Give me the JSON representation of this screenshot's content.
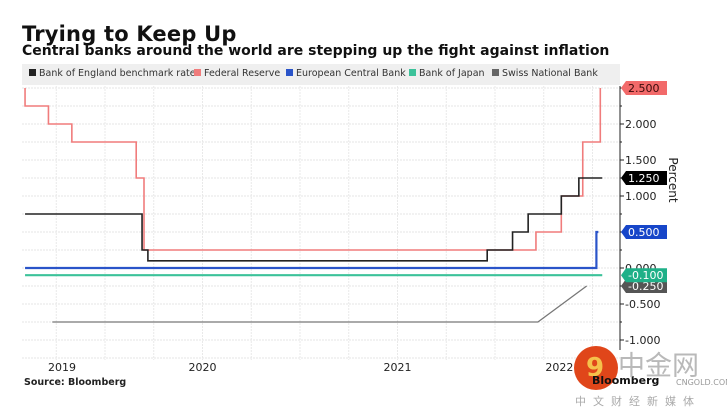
{
  "chart_data": {
    "type": "line",
    "title": "Trying to Keep Up",
    "subtitle": "Central banks around the world are stepping up the fight against inflation",
    "xlabel": "",
    "ylabel": "Percent",
    "ylim": [
      -1.0,
      2.5
    ],
    "xlim": [
      2019.59,
      2022.55
    ],
    "x_ticks": [
      {
        "label": "2019",
        "value": 2019.5
      },
      {
        "label": "2020",
        "value": 2020.5
      },
      {
        "label": "2021",
        "value": 2021.5
      },
      {
        "label": "2022",
        "value": 2022.33
      }
    ],
    "y_ticks": [
      {
        "label": "2.000",
        "value": 2.0
      },
      {
        "label": "1.500",
        "value": 1.5
      },
      {
        "label": "1.000",
        "value": 1.0
      },
      {
        "label": "0.000",
        "value": 0.0
      },
      {
        "label": "-0.500",
        "value": -0.5
      },
      {
        "label": "-1.000",
        "value": -1.0
      }
    ],
    "grid": true,
    "legend_position": "top",
    "series": [
      {
        "name": "Bank of England benchmark rate",
        "color": "#222222",
        "step": true,
        "points": [
          [
            2019.59,
            0.75
          ],
          [
            2020.19,
            0.25
          ],
          [
            2020.22,
            0.1
          ],
          [
            2021.96,
            0.25
          ],
          [
            2022.09,
            0.5
          ],
          [
            2022.17,
            0.75
          ],
          [
            2022.34,
            1.0
          ],
          [
            2022.43,
            1.25
          ],
          [
            2022.55,
            1.25
          ]
        ],
        "last_label": "1.250"
      },
      {
        "name": "Federal Reserve",
        "color": "#f07c7c",
        "step": true,
        "points": [
          [
            2019.59,
            2.5
          ],
          [
            2019.59,
            2.25
          ],
          [
            2019.71,
            2.0
          ],
          [
            2019.83,
            1.75
          ],
          [
            2020.16,
            1.25
          ],
          [
            2020.2,
            0.25
          ],
          [
            2022.21,
            0.5
          ],
          [
            2022.34,
            1.0
          ],
          [
            2022.45,
            1.75
          ],
          [
            2022.54,
            2.5
          ]
        ],
        "last_label": "2.500"
      },
      {
        "name": "European Central Bank",
        "color": "#2a54c9",
        "step": true,
        "points": [
          [
            2019.59,
            0.0
          ],
          [
            2022.52,
            0.0
          ],
          [
            2022.52,
            0.5
          ],
          [
            2022.53,
            0.5
          ]
        ],
        "last_label": "0.500"
      },
      {
        "name": "Bank of Japan",
        "color": "#3cc29a",
        "step": true,
        "points": [
          [
            2019.59,
            -0.1
          ],
          [
            2022.55,
            -0.1
          ]
        ],
        "last_label": "-0.100"
      },
      {
        "name": "Swiss National Bank",
        "color": "#777777",
        "step": false,
        "points": [
          [
            2019.73,
            -0.75
          ],
          [
            2022.22,
            -0.75
          ],
          [
            2022.47,
            -0.25
          ]
        ],
        "last_label": "-0.250"
      }
    ]
  },
  "source": "Source: Bloomberg",
  "brand": "Bloomberg",
  "watermark": {
    "logo_glyph": "9",
    "name": "中金网",
    "domain": "CNGOLD.COM.CN",
    "tagline": "中文财经新媒体"
  }
}
